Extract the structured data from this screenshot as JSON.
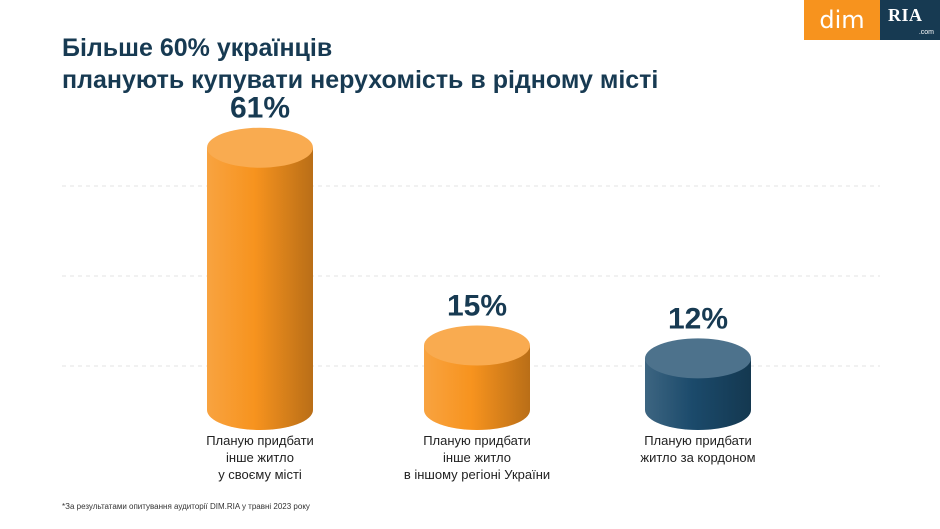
{
  "title": {
    "line1": "Більше 60% українців",
    "line2": "планують купувати нерухомість в рідному місті"
  },
  "logo": {
    "dim": "dim",
    "ria": "RIA",
    "com": ".com",
    "colors": {
      "dim_bg": "#f7931e",
      "ria_bg": "#173a52"
    }
  },
  "footnote": "*За результатами опитування аудиторії DIM.RIA у травні 2023 року",
  "chart_data": {
    "type": "bar",
    "style": "3d-cylinder",
    "grid": true,
    "categories": [
      [
        "Планую придбати",
        "інше житло",
        "у своєму місті"
      ],
      [
        "Планую придбати",
        "інше житло",
        "в іншому регіоні України"
      ],
      [
        "Планую придбати",
        "житло за кордоном"
      ]
    ],
    "values": [
      61,
      15,
      12
    ],
    "value_labels": [
      "61%",
      "15%",
      "12%"
    ],
    "colors": [
      "#f7931e",
      "#f7931e",
      "#1b4a6b"
    ],
    "ylim": [
      0,
      70
    ]
  }
}
